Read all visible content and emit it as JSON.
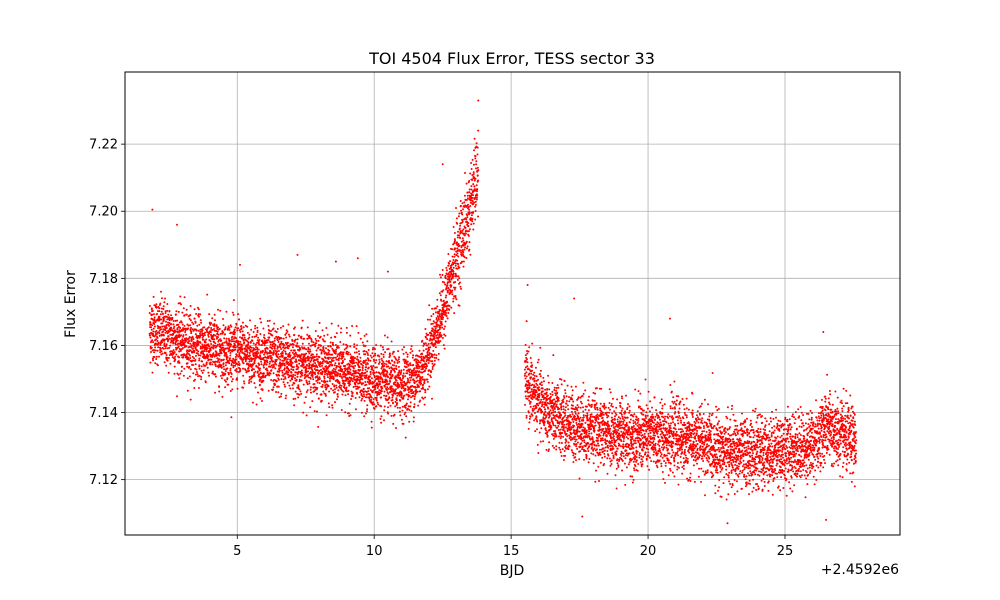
{
  "chart_data": {
    "type": "scatter",
    "title": "TOI 4504 Flux Error, TESS sector 33",
    "xlabel": "BJD",
    "ylabel": "Flux Error",
    "x_offset_label": "+2.4592e6",
    "xlim": [
      0.9,
      29.2
    ],
    "ylim": [
      7.1035,
      7.2415
    ],
    "xticks": [
      5,
      10,
      15,
      20,
      25
    ],
    "yticks": [
      7.12,
      7.14,
      7.16,
      7.18,
      7.2,
      7.22
    ],
    "ytick_labels": [
      "7.12",
      "7.14",
      "7.16",
      "7.18",
      "7.20",
      "7.22"
    ],
    "grid": true,
    "marker_color": "#ff0000",
    "series": [
      {
        "segments": [
          {
            "x_start": 1.8,
            "x_end": 13.8,
            "trend": [
              [
                1.8,
                7.165
              ],
              [
                2.5,
                7.163
              ],
              [
                3.0,
                7.161
              ],
              [
                4.0,
                7.159
              ],
              [
                5.0,
                7.158
              ],
              [
                6.0,
                7.156
              ],
              [
                7.0,
                7.155
              ],
              [
                8.0,
                7.154
              ],
              [
                9.0,
                7.152
              ],
              [
                10.0,
                7.15
              ],
              [
                10.8,
                7.148
              ],
              [
                11.3,
                7.149
              ],
              [
                11.7,
                7.152
              ],
              [
                12.0,
                7.158
              ],
              [
                12.3,
                7.165
              ],
              [
                12.6,
                7.173
              ],
              [
                12.9,
                7.183
              ],
              [
                13.2,
                7.192
              ],
              [
                13.5,
                7.201
              ],
              [
                13.8,
                7.212
              ]
            ],
            "scatter": 0.0065
          },
          {
            "x_start": 15.5,
            "x_end": 27.6,
            "trend": [
              [
                15.5,
                7.15
              ],
              [
                16.0,
                7.143
              ],
              [
                16.5,
                7.139
              ],
              [
                17.0,
                7.137
              ],
              [
                18.0,
                7.135
              ],
              [
                19.0,
                7.133
              ],
              [
                20.0,
                7.133
              ],
              [
                21.0,
                7.133
              ],
              [
                22.0,
                7.131
              ],
              [
                23.0,
                7.128
              ],
              [
                24.0,
                7.128
              ],
              [
                25.0,
                7.129
              ],
              [
                26.0,
                7.13
              ],
              [
                26.5,
                7.136
              ],
              [
                27.0,
                7.133
              ],
              [
                27.6,
                7.131
              ]
            ],
            "scatter": 0.0068
          }
        ],
        "outliers": [
          [
            1.9,
            7.2005
          ],
          [
            2.8,
            7.196
          ],
          [
            5.1,
            7.184
          ],
          [
            7.2,
            7.187
          ],
          [
            8.6,
            7.185
          ],
          [
            9.4,
            7.186
          ],
          [
            10.5,
            7.182
          ],
          [
            12.5,
            7.214
          ],
          [
            13.8,
            7.233
          ],
          [
            15.6,
            7.178
          ],
          [
            17.3,
            7.174
          ],
          [
            20.8,
            7.168
          ],
          [
            26.4,
            7.164
          ],
          [
            17.6,
            7.109
          ],
          [
            22.9,
            7.107
          ],
          [
            26.5,
            7.108
          ]
        ]
      }
    ]
  }
}
